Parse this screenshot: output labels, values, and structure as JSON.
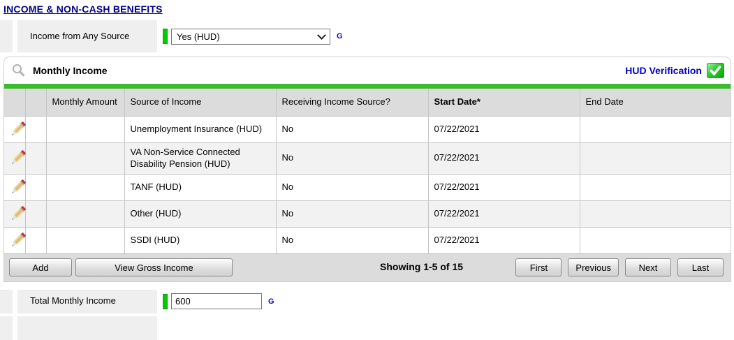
{
  "page": {
    "title": "INCOME & NON-CASH BENEFITS"
  },
  "colors": {
    "title_navy": "#00008B",
    "link_blue": "#0000CC",
    "green_bar": "#3CBB2C",
    "req_green": "#00CC00"
  },
  "icons": {
    "search": "magnifier-icon",
    "hud_verified": "green-check-icon",
    "edit": "pencil-icon",
    "dropdown": "chevron-down-icon"
  },
  "income_from_any_source": {
    "label": "Income from Any Source",
    "selected_value": "Yes (HUD)",
    "g_label": "G"
  },
  "panel": {
    "title": "Monthly Income",
    "hud_verification_label": "HUD Verification",
    "table": {
      "headers": [
        {
          "label": ""
        },
        {
          "label": ""
        },
        {
          "label": "Monthly Amount"
        },
        {
          "label": "Source of Income"
        },
        {
          "label": "Receiving Income Source?"
        },
        {
          "label": "Start Date",
          "bold": true,
          "required": "*"
        },
        {
          "label": "End Date"
        }
      ],
      "rows": [
        {
          "monthly_amount": "",
          "source": "Unemployment Insurance (HUD)",
          "receiving": "No",
          "start_date": "07/22/2021",
          "end_date": ""
        },
        {
          "monthly_amount": "",
          "source": "VA Non-Service Connected Disability Pension (HUD)",
          "receiving": "No",
          "start_date": "07/22/2021",
          "end_date": ""
        },
        {
          "monthly_amount": "",
          "source": "TANF (HUD)",
          "receiving": "No",
          "start_date": "07/22/2021",
          "end_date": ""
        },
        {
          "monthly_amount": "",
          "source": "Other (HUD)",
          "receiving": "No",
          "start_date": "07/22/2021",
          "end_date": ""
        },
        {
          "monthly_amount": "",
          "source": "SSDI (HUD)",
          "receiving": "No",
          "start_date": "07/22/2021",
          "end_date": ""
        }
      ]
    },
    "footer": {
      "add_label": "Add",
      "view_gross_label": "View Gross Income",
      "showing_text": "Showing 1-5 of 15",
      "pagination": [
        "First",
        "Previous",
        "Next",
        "Last"
      ]
    }
  },
  "total_monthly_income": {
    "label": "Total Monthly Income",
    "value": "600",
    "g_label": "G"
  }
}
